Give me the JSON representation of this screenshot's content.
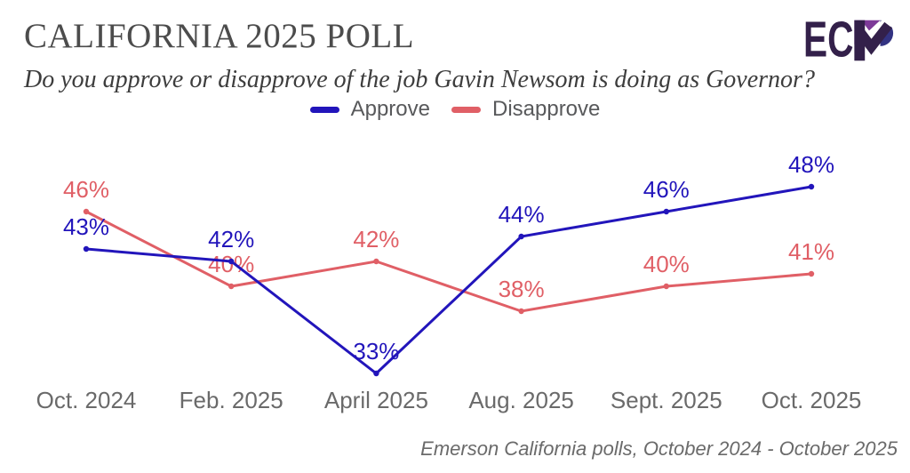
{
  "header": {
    "title": "CALIFORNIA 2025 POLL",
    "subtitle": "Do you approve or disapprove of the job Gavin Newsom is doing as Governor?",
    "logo_text": "ECP"
  },
  "chart_data": {
    "type": "line",
    "title": "CALIFORNIA 2025 POLL",
    "subtitle": "Do you approve or disapprove of the job Gavin Newsom is doing as Governor?",
    "categories": [
      "Oct. 2024",
      "Feb. 2025",
      "April 2025",
      "Aug. 2025",
      "Sept. 2025",
      "Oct. 2025"
    ],
    "series": [
      {
        "name": "Approve",
        "color": "#2215bb",
        "values": [
          43,
          42,
          33,
          44,
          46,
          48
        ]
      },
      {
        "name": "Disapprove",
        "color": "#e05f66",
        "values": [
          46,
          40,
          42,
          38,
          40,
          41
        ]
      }
    ],
    "unit": "%",
    "ylim": [
      30,
      50
    ],
    "grid": false,
    "legend_position": "top",
    "point_labels": true,
    "xlabel": "",
    "ylabel": ""
  },
  "footer": {
    "source": "Emerson California polls, October 2024 - October 2025"
  },
  "colors": {
    "approve": "#2215bb",
    "disapprove": "#e05f66",
    "title_text": "#4c4c4c",
    "axis_text": "#6a6a6a",
    "legend_text": "#58595b",
    "background": "#ffffff",
    "logo_plum": "#33204a",
    "logo_purple": "#7d3a98",
    "logo_indigo": "#333382"
  }
}
